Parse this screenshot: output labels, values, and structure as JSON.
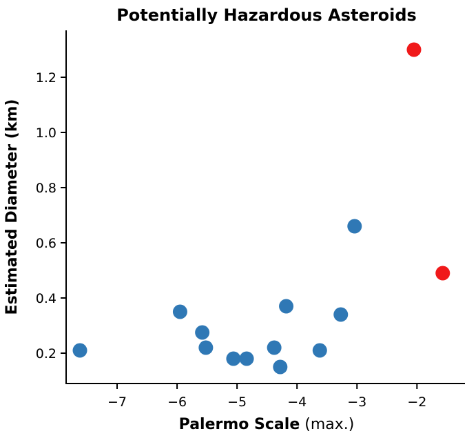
{
  "chart_data": {
    "type": "scatter",
    "title": "Potentially Hazardous Asteroids",
    "xlabel_bold": "Palermo Scale",
    "xlabel_rest": " (max.)",
    "ylabel": "Estimated Diameter (km)",
    "xlim": [
      -7.85,
      -1.2
    ],
    "ylim": [
      0.09,
      1.37
    ],
    "xticks": [
      -7,
      -6,
      -5,
      -4,
      -3,
      -2
    ],
    "xtick_labels": [
      "−7",
      "−6",
      "−5",
      "−4",
      "−3",
      "−2"
    ],
    "yticks": [
      0.2,
      0.4,
      0.6,
      0.8,
      1.0,
      1.2
    ],
    "ytick_labels": [
      "0.2",
      "0.4",
      "0.6",
      "0.8",
      "1.0",
      "1.2"
    ],
    "grid": false,
    "colors": {
      "normal": "#2f78b5",
      "highlight": "#f0191a"
    },
    "points": [
      {
        "x": -7.62,
        "y": 0.21,
        "highlight": false
      },
      {
        "x": -5.95,
        "y": 0.35,
        "highlight": false
      },
      {
        "x": -5.58,
        "y": 0.275,
        "highlight": false
      },
      {
        "x": -5.52,
        "y": 0.22,
        "highlight": false
      },
      {
        "x": -5.06,
        "y": 0.18,
        "highlight": false
      },
      {
        "x": -4.84,
        "y": 0.18,
        "highlight": false
      },
      {
        "x": -4.38,
        "y": 0.22,
        "highlight": false
      },
      {
        "x": -4.28,
        "y": 0.15,
        "highlight": false
      },
      {
        "x": -4.18,
        "y": 0.37,
        "highlight": false
      },
      {
        "x": -3.62,
        "y": 0.21,
        "highlight": false
      },
      {
        "x": -3.27,
        "y": 0.34,
        "highlight": false
      },
      {
        "x": -3.04,
        "y": 0.66,
        "highlight": false
      },
      {
        "x": -2.05,
        "y": 1.3,
        "highlight": true
      },
      {
        "x": -1.57,
        "y": 0.49,
        "highlight": true
      }
    ]
  }
}
